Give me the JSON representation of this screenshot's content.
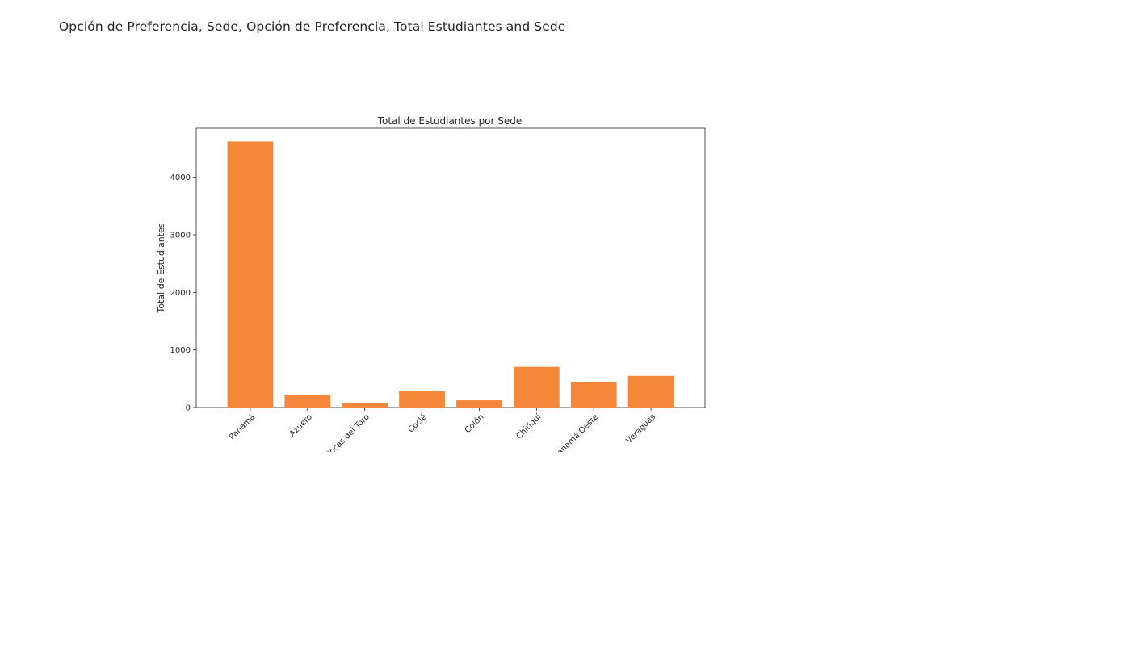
{
  "report": {
    "title": "Opción de Preferencia, Sede, Opción de Preferencia, Total Estudiantes and Sede"
  },
  "chart_data": {
    "type": "bar",
    "title": "Total de Estudiantes por Sede",
    "xlabel": "",
    "ylabel": "Total de Estudiantes",
    "categories": [
      "Panamá",
      "Azuero",
      "Bocas del Toro",
      "Coclé",
      "Colón",
      "Chiriquí",
      "Panamá Oeste",
      "Veraguas"
    ],
    "values": [
      4620,
      210,
      75,
      285,
      125,
      705,
      440,
      550
    ],
    "ylim": [
      0,
      4850
    ],
    "yticks": [
      0,
      1000,
      2000,
      3000,
      4000
    ],
    "bar_color": "#f5873a",
    "grid": false,
    "legend": "none"
  }
}
